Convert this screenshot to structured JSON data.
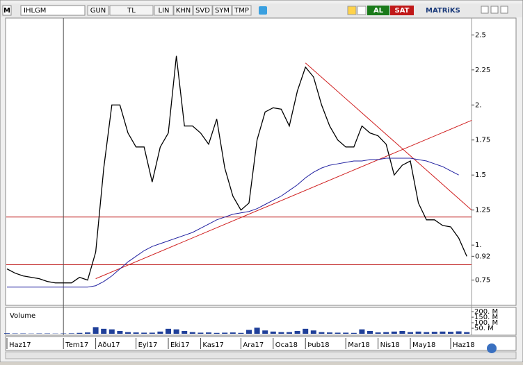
{
  "toolbar": {
    "logo": "M",
    "symbol": "IHLGM",
    "buttons": [
      "GUN",
      "TL",
      "LIN",
      "KHN",
      "SVD",
      "SYM",
      "TMP"
    ],
    "buy": "AL",
    "sell": "SAT",
    "brand": "MATRiKS"
  },
  "chart_data": {
    "type": "line",
    "x": [
      "Haz17",
      null,
      null,
      null,
      null,
      null,
      null,
      "Tem17",
      null,
      null,
      null,
      "Aðu17",
      null,
      null,
      null,
      null,
      "Eyl17",
      null,
      null,
      null,
      "Eki17",
      null,
      null,
      null,
      "Kas17",
      null,
      null,
      null,
      null,
      "Ara17",
      null,
      null,
      null,
      "Oca18",
      null,
      null,
      null,
      "Þub18",
      null,
      null,
      null,
      null,
      "Mar18",
      null,
      null,
      null,
      "Nis18",
      null,
      null,
      null,
      "May18",
      null,
      null,
      null,
      null,
      "Haz18",
      null,
      null
    ],
    "series": [
      {
        "name": "IHLGM",
        "color": "#000000",
        "values": [
          0.83,
          0.8,
          0.78,
          0.77,
          0.76,
          0.74,
          0.73,
          0.73,
          0.73,
          0.77,
          0.75,
          0.95,
          1.55,
          2.0,
          2.0,
          1.8,
          1.7,
          1.7,
          1.45,
          1.7,
          1.8,
          2.35,
          1.85,
          1.85,
          1.8,
          1.72,
          1.9,
          1.55,
          1.35,
          1.25,
          1.3,
          1.75,
          1.95,
          1.98,
          1.97,
          1.85,
          2.1,
          2.27,
          2.2,
          2.0,
          1.85,
          1.75,
          1.7,
          1.7,
          1.85,
          1.8,
          1.78,
          1.72,
          1.5,
          1.57,
          1.6,
          1.3,
          1.18,
          1.18,
          1.14,
          1.13,
          1.05,
          0.92
        ]
      },
      {
        "color": "#2020a0",
        "values": [
          0.7,
          0.7,
          0.7,
          0.7,
          0.7,
          0.7,
          0.7,
          0.7,
          0.7,
          0.7,
          0.7,
          0.71,
          0.74,
          0.78,
          0.83,
          0.88,
          0.92,
          0.96,
          0.99,
          1.01,
          1.03,
          1.05,
          1.07,
          1.09,
          1.12,
          1.15,
          1.18,
          1.2,
          1.22,
          1.23,
          1.24,
          1.26,
          1.29,
          1.32,
          1.35,
          1.39,
          1.43,
          1.48,
          1.52,
          1.55,
          1.57,
          1.58,
          1.59,
          1.6,
          1.6,
          1.61,
          1.61,
          1.62,
          1.62,
          1.62,
          1.62,
          1.61,
          1.6,
          1.58,
          1.56,
          1.53,
          1.5,
          null
        ]
      }
    ],
    "ylim": [
      0.57,
      2.66
    ],
    "yticks": [
      0.75,
      0.92,
      {
        "value": 1,
        "label": "1."
      },
      1.25,
      1.5,
      1.75,
      {
        "value": 2,
        "label": "2."
      },
      2.25,
      2.5
    ],
    "hlines": [
      {
        "value": 1.2,
        "color": "#c02020"
      },
      {
        "value": 0.86,
        "color": "#c02020"
      }
    ],
    "trendlines": [
      {
        "color": "#d02020",
        "from": [
          11,
          0.76
        ],
        "to": [
          57.6,
          1.89
        ]
      },
      {
        "color": "#d02020",
        "from": [
          37,
          2.3
        ],
        "to": [
          57.6,
          1.25
        ]
      }
    ],
    "cursor": 7,
    "volume": {
      "label": "Volume",
      "color": "#1f3f99",
      "ylim": [
        0,
        226
      ],
      "yticks": [
        {
          "value": 200,
          "label": "200. M"
        },
        {
          "value": 150,
          "label": "150. M"
        },
        {
          "value": 100,
          "label": "100. M"
        },
        {
          "value": 50,
          "label": "50. M"
        }
      ],
      "values": [
        5,
        3,
        3,
        2,
        3,
        3,
        2,
        3,
        4,
        8,
        12,
        60,
        45,
        40,
        25,
        15,
        12,
        10,
        10,
        20,
        45,
        40,
        25,
        15,
        10,
        12,
        8,
        10,
        12,
        8,
        35,
        55,
        30,
        20,
        15,
        15,
        25,
        45,
        30,
        15,
        12,
        10,
        10,
        8,
        40,
        25,
        12,
        15,
        20,
        25,
        15,
        20,
        15,
        18,
        20,
        18,
        22,
        15
      ]
    }
  }
}
